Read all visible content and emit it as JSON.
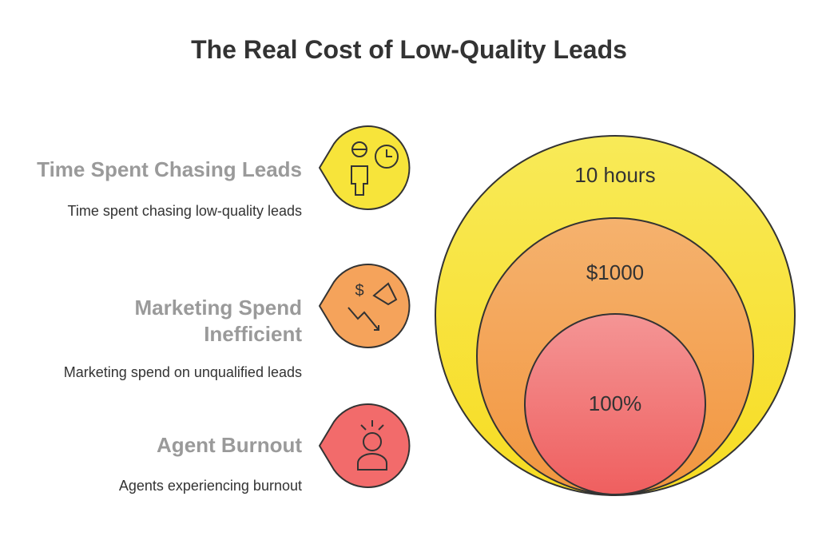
{
  "title": "The Real Cost of Low-Quality Leads",
  "items": [
    {
      "heading": "Time Spent Chasing Leads",
      "description": "Time spent chasing low-quality leads",
      "value": "10 hours"
    },
    {
      "heading": "Marketing Spend Inefficient",
      "description": "Marketing spend on unqualified leads",
      "value": "$1000"
    },
    {
      "heading": "Agent Burnout",
      "description": "Agents experiencing burnout",
      "value": "100%"
    }
  ]
}
